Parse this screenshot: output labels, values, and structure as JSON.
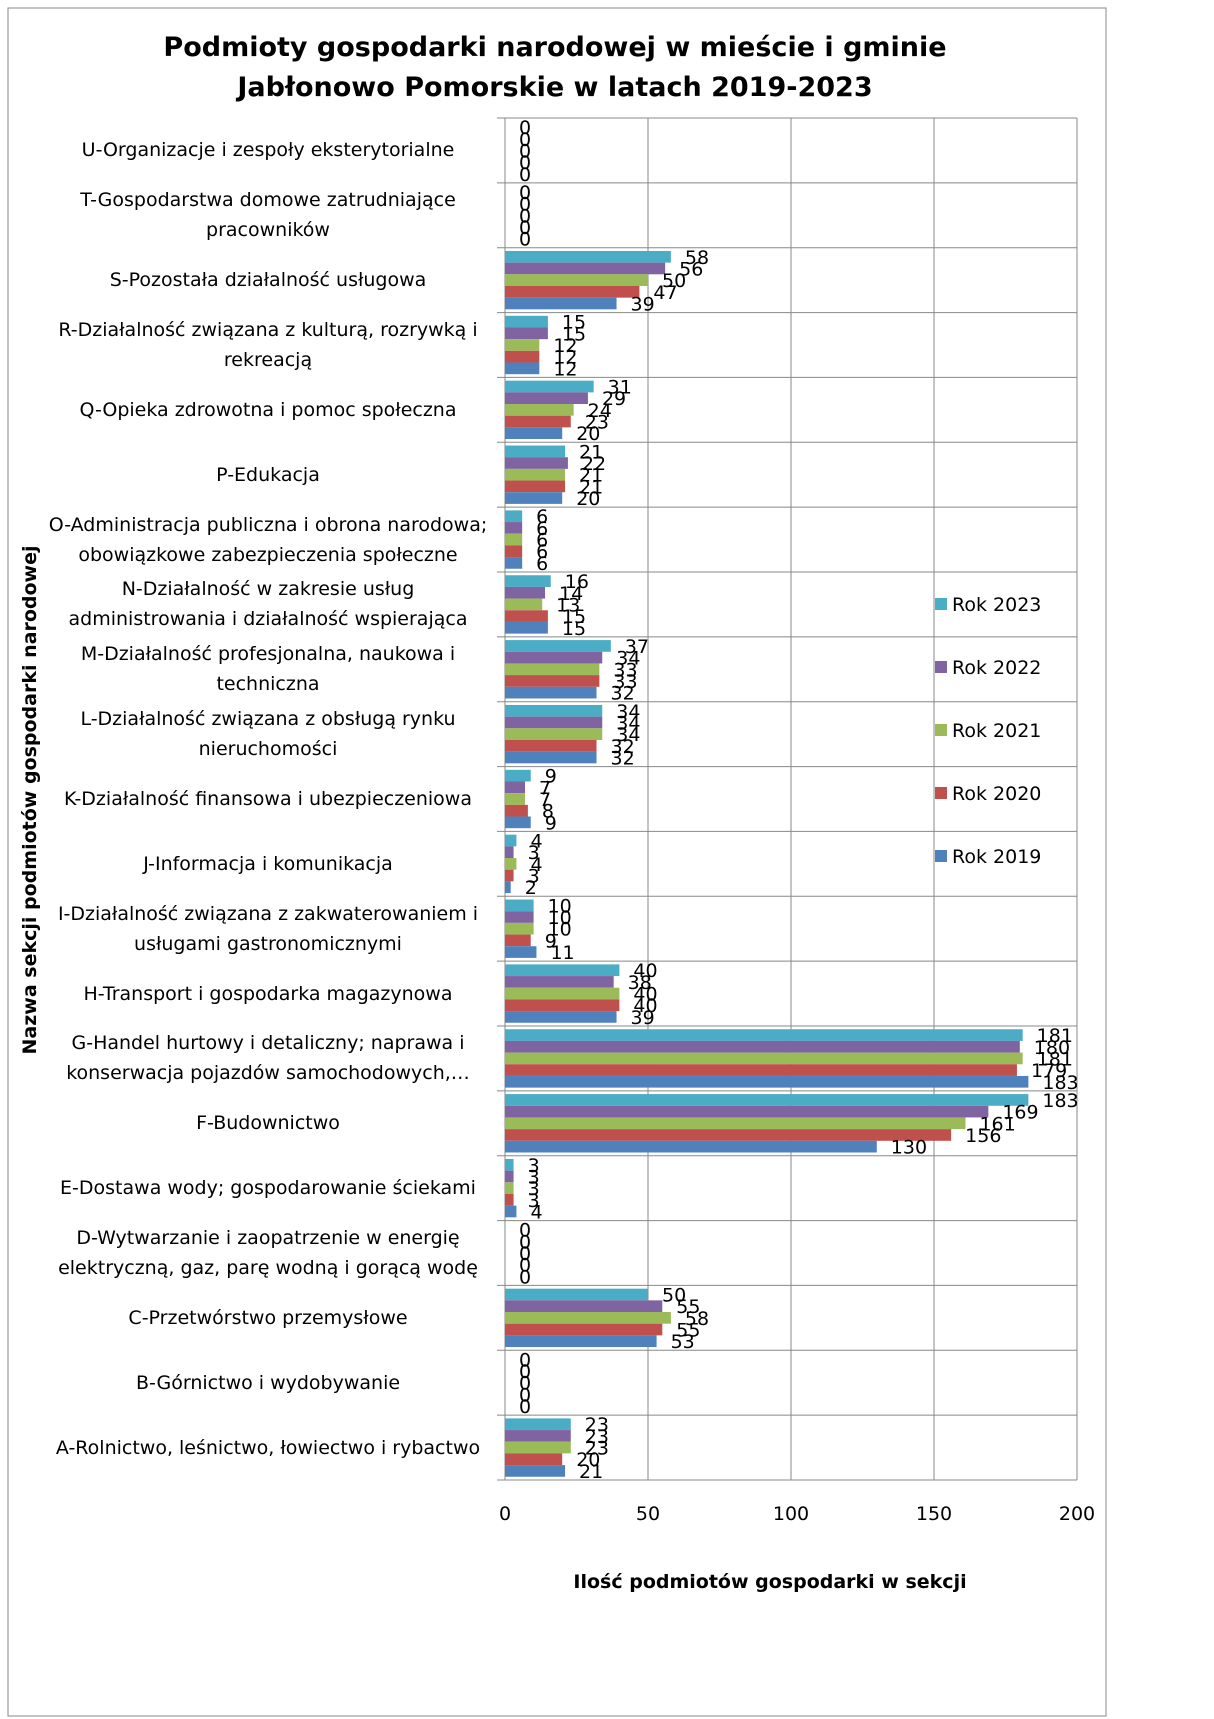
{
  "chart_data": {
    "type": "bar",
    "orientation": "horizontal",
    "title": "Podmioty gospodarki narodowej w mieście i gminie Jabłonowo Pomorskie w latach 2019-2023",
    "xlabel": "Ilość podmiotów gospodarki w sekcji",
    "ylabel": "Nazwa sekcji podmiotów gospodarki narodowej",
    "categories": [
      "U-Organizacje i zespoły eksterytorialne",
      "T-Gospodarstwa domowe zatrudniające pracowników",
      "S-Pozostała działalność usługowa",
      "R-Działalność związana z kulturą, rozrywką i rekreacją",
      "Q-Opieka zdrowotna i pomoc społeczna",
      "P-Edukacja",
      "O-Administracja publiczna i obrona narodowa; obowiązkowe zabezpieczenia społeczne",
      "N-Działalność w zakresie usług administrowania i działalność wspierająca",
      "M-Działalność profesjonalna, naukowa i techniczna",
      "L-Działalność związana z obsługą rynku nieruchomości",
      "K-Działalność finansowa i ubezpieczeniowa",
      "J-Informacja i komunikacja",
      "I-Działalność związana z zakwaterowaniem i usługami gastronomicznymi",
      "H-Transport i gospodarka magazynowa",
      "G-Handel hurtowy i detaliczny; naprawa i konserwacja pojazdów samochodowych,…",
      "F-Budownictwo",
      "E-Dostawa wody; gospodarowanie ściekami",
      "D-Wytwarzanie i zaopatrzenie w energię elektryczną, gaz, parę wodną i gorącą wodę",
      "C-Przetwórstwo przemysłowe",
      "B-Górnictwo i wydobywanie",
      "A-Rolnictwo, leśnictwo, łowiectwo i rybactwo"
    ],
    "series": [
      {
        "name": "Rok 2023",
        "color": "#4bacc6",
        "values": [
          0,
          0,
          58,
          15,
          31,
          21,
          6,
          16,
          37,
          34,
          9,
          4,
          10,
          40,
          181,
          183,
          3,
          0,
          50,
          0,
          23
        ]
      },
      {
        "name": "Rok 2022",
        "color": "#8064a2",
        "values": [
          0,
          0,
          56,
          15,
          29,
          22,
          6,
          14,
          34,
          34,
          7,
          3,
          10,
          38,
          180,
          169,
          3,
          0,
          55,
          0,
          23
        ]
      },
      {
        "name": "Rok 2021",
        "color": "#9bbb59",
        "values": [
          0,
          0,
          50,
          12,
          24,
          21,
          6,
          13,
          33,
          34,
          7,
          4,
          10,
          40,
          181,
          161,
          3,
          0,
          58,
          0,
          23
        ]
      },
      {
        "name": "Rok 2020",
        "color": "#c0504d",
        "values": [
          0,
          0,
          47,
          12,
          23,
          21,
          6,
          15,
          33,
          32,
          8,
          3,
          9,
          40,
          179,
          156,
          3,
          0,
          55,
          0,
          20
        ]
      },
      {
        "name": "Rok 2019",
        "color": "#4f81bd",
        "values": [
          0,
          0,
          39,
          12,
          20,
          20,
          6,
          15,
          32,
          32,
          9,
          2,
          11,
          39,
          183,
          130,
          4,
          0,
          53,
          0,
          21
        ]
      }
    ],
    "xlim": [
      0,
      200
    ],
    "xticks": [
      0,
      50,
      100,
      150,
      200
    ],
    "grid": true,
    "legend": "right"
  }
}
